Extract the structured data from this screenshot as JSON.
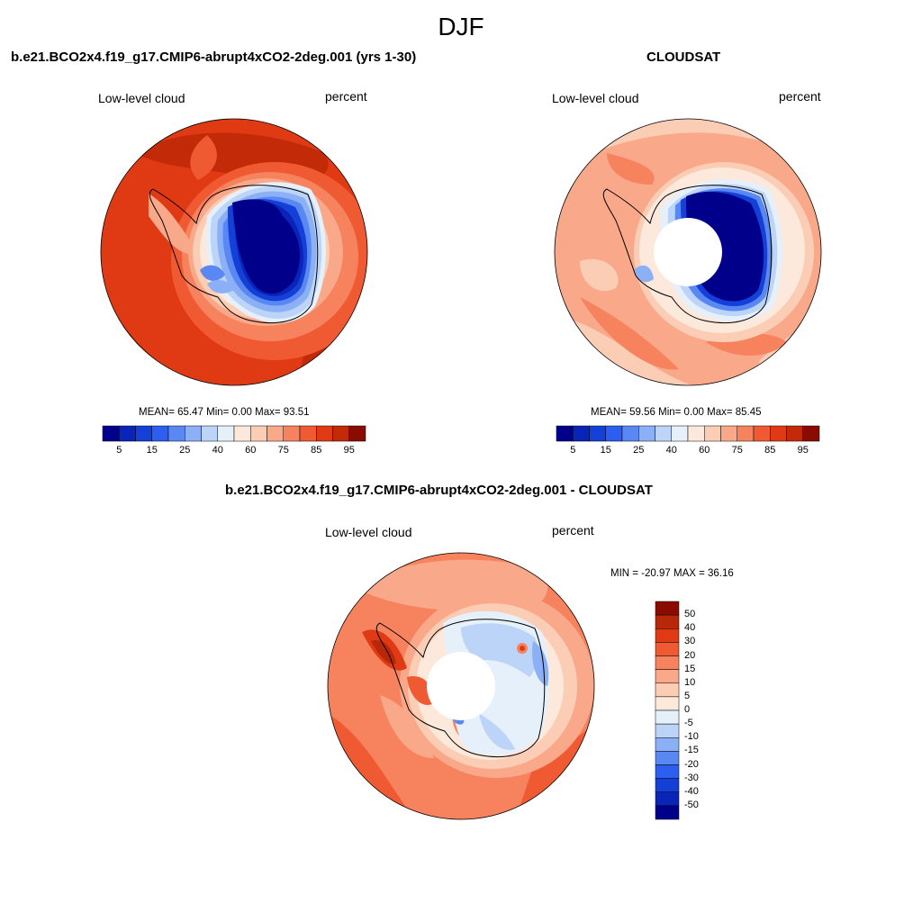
{
  "figure": {
    "season": "DJF"
  },
  "panels": [
    {
      "title": "b.e21.BCO2x4.f19_g17.CMIP6-abrupt4xCO2-2deg.001 (yrs 1-30)",
      "left_label": "Low-level cloud",
      "right_label": "percent",
      "stats": "MEAN=  65.47  Min=    0.00  Max=  93.51",
      "pole_mask": false,
      "colorbar_labels": [
        "5",
        "15",
        "25",
        "40",
        "60",
        "75",
        "85",
        "95"
      ]
    },
    {
      "title": "CLOUDSAT",
      "left_label": "Low-level cloud",
      "right_label": "percent",
      "stats": "MEAN=  59.56  Min=    0.00  Max=  85.45",
      "pole_mask": true,
      "colorbar_labels": [
        "5",
        "15",
        "25",
        "40",
        "60",
        "75",
        "85",
        "95"
      ]
    },
    {
      "title": "b.e21.BCO2x4.f19_g17.CMIP6-abrupt4xCO2-2deg.001 - CLOUDSAT",
      "left_label": "Low-level cloud",
      "right_label": "percent",
      "stats": "MIN = -20.97 MAX =  36.16",
      "pole_mask": true,
      "colorbar_labels": [
        "50",
        "40",
        "30",
        "20",
        "15",
        "10",
        "5",
        "0",
        "-5",
        "-10",
        "-15",
        "-20",
        "-30",
        "-40",
        "-50"
      ]
    }
  ],
  "palettes": {
    "abs": [
      "#00008b",
      "#0a24b8",
      "#1540d8",
      "#2c5ef0",
      "#5a88f2",
      "#8cb0f5",
      "#bcd4f8",
      "#e6f0fb",
      "#fde9dc",
      "#fbcdb5",
      "#f9a98a",
      "#f6825e",
      "#f05a32",
      "#e03a14",
      "#c22a08",
      "#8a0c00"
    ],
    "diff": [
      "#8a0c00",
      "#b82808",
      "#e03a14",
      "#f05a32",
      "#f6825e",
      "#f9a98a",
      "#fbcdb5",
      "#fde9dc",
      "#e6f0fb",
      "#bcd4f8",
      "#8cb0f5",
      "#5a88f2",
      "#2c5ef0",
      "#1540d8",
      "#0a24b8",
      "#00008b"
    ]
  }
}
